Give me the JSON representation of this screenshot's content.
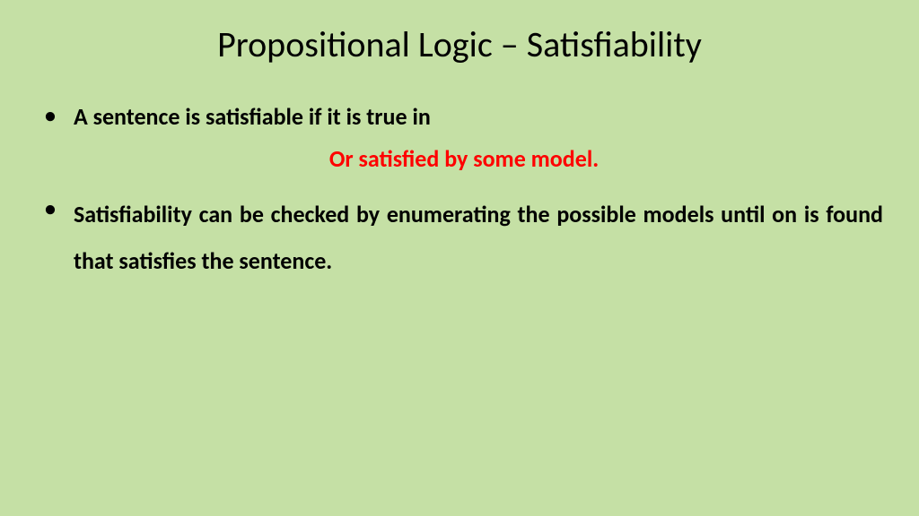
{
  "slide": {
    "title": "Propositional Logic – Satisfiability",
    "bullet1": "A sentence is satisfiable if it is true in",
    "highlight": "Or satisfied by some model.",
    "bullet2": "Satisfiability can be checked by enumerating the possible models until on is found that satisfies the sentence.",
    "colors": {
      "background": "#c5e0a5",
      "title_color": "#000000",
      "text_color": "#000000",
      "highlight_color": "#ff0000"
    },
    "typography": {
      "title_fontsize": 40,
      "body_fontsize": 26,
      "font_family": "Calibri"
    }
  }
}
